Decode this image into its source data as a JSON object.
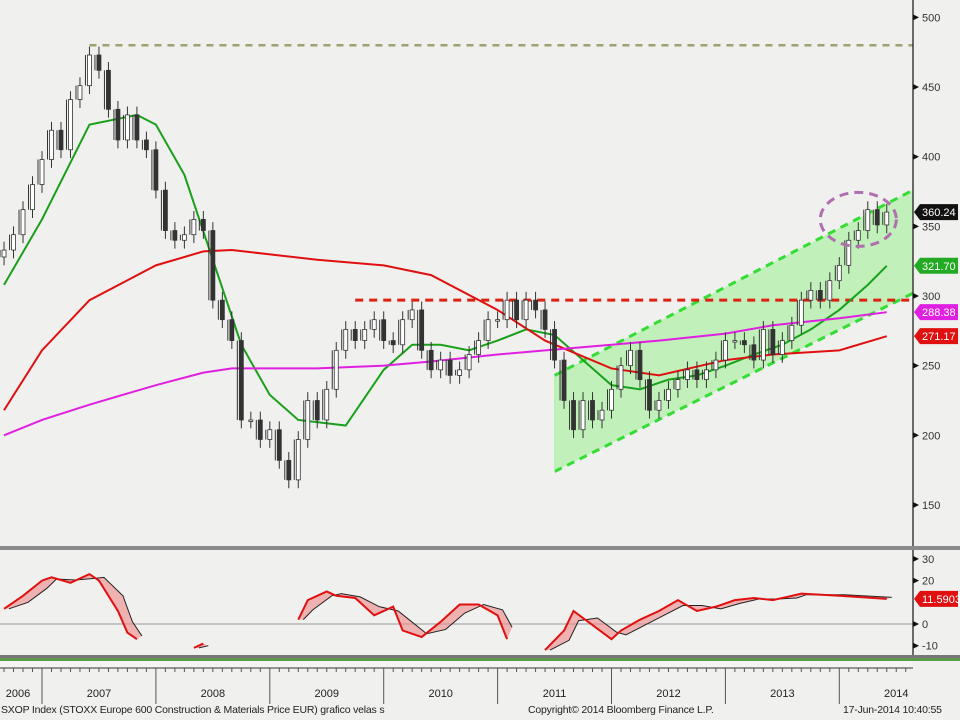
{
  "footer": {
    "title": "SXOP Index (STOXX Europe 600 Construction & Materials Price EUR) grafico velas s",
    "copyright": "Copyright© 2014 Bloomberg Finance L.P.",
    "timestamp": "17-Jun-2014 10:40:55"
  },
  "colors": {
    "background": "#f0f0ee",
    "candles": "#333333",
    "ma_short": "#1aa01a",
    "ma_mid": "#e01010",
    "ma_long": "#e020e0",
    "channel_fill": "#b8f0b0",
    "channel_line": "#33dd33",
    "resistance": "#dd2211",
    "top_line": "#a0a070",
    "ellipse": "#b070b0",
    "indicator": "#e01010",
    "signal": "#222222"
  },
  "chart_data": [
    {
      "type": "candlestick",
      "title": "",
      "x_axis": {
        "type": "date",
        "tick_labels": [
          "2006",
          "2007",
          "2008",
          "2009",
          "2010",
          "2011",
          "2012",
          "2013",
          "2014"
        ]
      },
      "y_axis": {
        "side": "right",
        "range": [
          130,
          510
        ],
        "tick_labels": [
          "500",
          "450",
          "400",
          "350",
          "300",
          "250",
          "200",
          "150"
        ]
      },
      "grid": false,
      "price_close": [
        [
          "2006-09",
          333
        ],
        [
          "2006-10",
          344
        ],
        [
          "2006-11",
          362
        ],
        [
          "2006-12",
          380
        ],
        [
          "2007-01",
          398
        ],
        [
          "2007-02",
          419
        ],
        [
          "2007-03",
          405
        ],
        [
          "2007-04",
          441
        ],
        [
          "2007-05",
          451
        ],
        [
          "2007-06",
          473
        ],
        [
          "2007-07",
          462
        ],
        [
          "2007-08",
          434
        ],
        [
          "2007-09",
          412
        ],
        [
          "2007-10",
          430
        ],
        [
          "2007-11",
          412
        ],
        [
          "2007-12",
          405
        ],
        [
          "2008-01",
          376
        ],
        [
          "2008-02",
          347
        ],
        [
          "2008-03",
          340
        ],
        [
          "2008-04",
          344
        ],
        [
          "2008-05",
          355
        ],
        [
          "2008-06",
          347
        ],
        [
          "2008-07",
          297
        ],
        [
          "2008-08",
          283
        ],
        [
          "2008-09",
          268
        ],
        [
          "2008-10",
          211
        ],
        [
          "2008-11",
          211
        ],
        [
          "2008-12",
          197
        ],
        [
          "2009-01",
          204
        ],
        [
          "2009-02",
          182
        ],
        [
          "2009-03",
          168
        ],
        [
          "2009-04",
          197
        ],
        [
          "2009-05",
          225
        ],
        [
          "2009-06",
          211
        ],
        [
          "2009-07",
          233
        ],
        [
          "2009-08",
          261
        ],
        [
          "2009-09",
          276
        ],
        [
          "2009-10",
          268
        ],
        [
          "2009-11",
          276
        ],
        [
          "2009-12",
          283
        ],
        [
          "2010-01",
          268
        ],
        [
          "2010-02",
          265
        ],
        [
          "2010-03",
          283
        ],
        [
          "2010-04",
          290
        ],
        [
          "2010-05",
          261
        ],
        [
          "2010-06",
          247
        ],
        [
          "2010-07",
          254
        ],
        [
          "2010-08",
          243
        ],
        [
          "2010-09",
          247
        ],
        [
          "2010-10",
          258
        ],
        [
          "2010-11",
          268
        ],
        [
          "2010-12",
          283
        ],
        [
          "2011-01",
          283
        ],
        [
          "2011-02",
          297
        ],
        [
          "2011-03",
          283
        ],
        [
          "2011-04",
          297
        ],
        [
          "2011-05",
          290
        ],
        [
          "2011-06",
          276
        ],
        [
          "2011-07",
          254
        ],
        [
          "2011-08",
          225
        ],
        [
          "2011-09",
          204
        ],
        [
          "2011-10",
          225
        ],
        [
          "2011-11",
          211
        ],
        [
          "2011-12",
          218
        ],
        [
          "2012-01",
          233
        ],
        [
          "2012-02",
          250
        ],
        [
          "2012-03",
          261
        ],
        [
          "2012-04",
          240
        ],
        [
          "2012-05",
          218
        ],
        [
          "2012-06",
          225
        ],
        [
          "2012-07",
          233
        ],
        [
          "2012-08",
          240
        ],
        [
          "2012-09",
          247
        ],
        [
          "2012-10",
          240
        ],
        [
          "2012-11",
          247
        ],
        [
          "2012-12",
          254
        ],
        [
          "2013-01",
          268
        ],
        [
          "2013-02",
          268
        ],
        [
          "2013-03",
          265
        ],
        [
          "2013-04",
          254
        ],
        [
          "2013-05",
          276
        ],
        [
          "2013-06",
          258
        ],
        [
          "2013-07",
          268
        ],
        [
          "2013-08",
          279
        ],
        [
          "2013-09",
          297
        ],
        [
          "2013-10",
          304
        ],
        [
          "2013-11",
          297
        ],
        [
          "2013-12",
          311
        ],
        [
          "2014-01",
          322
        ],
        [
          "2014-02",
          340
        ],
        [
          "2014-03",
          347
        ],
        [
          "2014-04",
          362
        ],
        [
          "2014-05",
          351
        ],
        [
          "2014-06",
          360.24
        ]
      ],
      "series": [
        {
          "key": "ma_short",
          "last_label": "321.70",
          "values": [
            [
              "2006-09",
              308
            ],
            [
              "2007-01",
              355
            ],
            [
              "2007-06",
              423
            ],
            [
              "2007-11",
              430
            ],
            [
              "2008-01",
              423
            ],
            [
              "2008-04",
              387
            ],
            [
              "2008-07",
              326
            ],
            [
              "2008-10",
              265
            ],
            [
              "2009-01",
              229
            ],
            [
              "2009-04",
              211
            ],
            [
              "2009-09",
              207
            ],
            [
              "2010-01",
              247
            ],
            [
              "2010-04",
              265
            ],
            [
              "2010-07",
              265
            ],
            [
              "2010-10",
              261
            ],
            [
              "2011-01",
              268
            ],
            [
              "2011-04",
              276
            ],
            [
              "2011-07",
              272
            ],
            [
              "2011-10",
              254
            ],
            [
              "2012-01",
              236
            ],
            [
              "2012-04",
              233
            ],
            [
              "2012-07",
              240
            ],
            [
              "2012-10",
              243
            ],
            [
              "2013-01",
              250
            ],
            [
              "2013-04",
              258
            ],
            [
              "2013-07",
              265
            ],
            [
              "2013-10",
              276
            ],
            [
              "2014-01",
              290
            ],
            [
              "2014-04",
              308
            ],
            [
              "2014-06",
              321.7
            ]
          ]
        },
        {
          "key": "ma_mid",
          "last_label": "271.17",
          "values": [
            [
              "2006-09",
              218
            ],
            [
              "2007-01",
              261
            ],
            [
              "2007-06",
              297
            ],
            [
              "2008-01",
              322
            ],
            [
              "2008-06",
              332
            ],
            [
              "2008-09",
              333
            ],
            [
              "2009-06",
              326
            ],
            [
              "2010-01",
              322
            ],
            [
              "2010-06",
              315
            ],
            [
              "2011-01",
              290
            ],
            [
              "2011-06",
              268
            ],
            [
              "2012-01",
              248
            ],
            [
              "2012-06",
              243
            ],
            [
              "2013-01",
              254
            ],
            [
              "2013-06",
              258
            ],
            [
              "2014-01",
              261
            ],
            [
              "2014-06",
              271.17
            ]
          ]
        },
        {
          "key": "ma_long",
          "last_label": "288.38",
          "values": [
            [
              "2006-09",
              200
            ],
            [
              "2007-01",
              211
            ],
            [
              "2007-06",
              222
            ],
            [
              "2008-01",
              236
            ],
            [
              "2008-06",
              245
            ],
            [
              "2008-09",
              248
            ],
            [
              "2009-06",
              248
            ],
            [
              "2010-01",
              250
            ],
            [
              "2010-06",
              253
            ],
            [
              "2011-01",
              258
            ],
            [
              "2011-06",
              261
            ],
            [
              "2012-01",
              265
            ],
            [
              "2012-06",
              268
            ],
            [
              "2013-01",
              273
            ],
            [
              "2013-06",
              279
            ],
            [
              "2014-01",
              284
            ],
            [
              "2014-06",
              288.38
            ]
          ]
        }
      ],
      "last_price_label": "360.24",
      "annotations": {
        "all_time_high_line": {
          "value": 480,
          "from": "2007-06"
        },
        "resistance_line": {
          "value": 297,
          "from": "2009-10"
        },
        "channel": {
          "from": "2011-07",
          "upper": [
            243,
            376
          ],
          "lower": [
            174,
            302
          ]
        },
        "highlight_ellipse": {
          "center": [
            "2014-03",
            355
          ]
        }
      }
    },
    {
      "type": "line",
      "title": "",
      "y_axis": {
        "side": "right",
        "range": [
          -14,
          34
        ],
        "tick_labels": [
          "30",
          "20",
          "0",
          "-10"
        ]
      },
      "last_label": "11.5903",
      "values": [
        [
          "2006-09",
          7
        ],
        [
          "2006-11",
          13
        ],
        [
          "2007-01",
          20
        ],
        [
          "2007-02",
          21.5
        ],
        [
          "2007-04",
          19
        ],
        [
          "2007-06",
          23
        ],
        [
          "2007-07",
          20
        ],
        [
          "2007-09",
          6
        ],
        [
          "2007-10",
          -4
        ],
        [
          "2007-11",
          -7
        ],
        [
          "2008-01",
          null
        ],
        [
          "2008-05",
          -11
        ],
        [
          "2008-06",
          -9
        ],
        [
          "2008-07",
          null
        ],
        [
          "2009-03",
          null
        ],
        [
          "2009-04",
          2
        ],
        [
          "2009-05",
          11
        ],
        [
          "2009-07",
          15
        ],
        [
          "2009-08",
          13
        ],
        [
          "2009-10",
          12
        ],
        [
          "2009-12",
          4
        ],
        [
          "2010-02",
          8
        ],
        [
          "2010-03",
          -3
        ],
        [
          "2010-05",
          -6
        ],
        [
          "2010-07",
          1
        ],
        [
          "2010-09",
          9
        ],
        [
          "2010-11",
          9
        ],
        [
          "2011-01",
          4
        ],
        [
          "2011-02",
          -7
        ],
        [
          "2011-04",
          null
        ],
        [
          "2011-05",
          null
        ],
        [
          "2011-06",
          -12
        ],
        [
          "2011-08",
          -3
        ],
        [
          "2011-09",
          6
        ],
        [
          "2011-11",
          -0.5
        ],
        [
          "2012-01",
          -7
        ],
        [
          "2012-02",
          -3
        ],
        [
          "2012-04",
          2
        ],
        [
          "2012-06",
          6
        ],
        [
          "2012-08",
          11
        ],
        [
          "2012-10",
          6
        ],
        [
          "2012-12",
          8
        ],
        [
          "2013-02",
          11
        ],
        [
          "2013-04",
          12
        ],
        [
          "2013-06",
          11
        ],
        [
          "2013-08",
          13
        ],
        [
          "2013-09",
          14
        ],
        [
          "2014-01",
          13
        ],
        [
          "2014-06",
          11.59
        ]
      ]
    }
  ]
}
